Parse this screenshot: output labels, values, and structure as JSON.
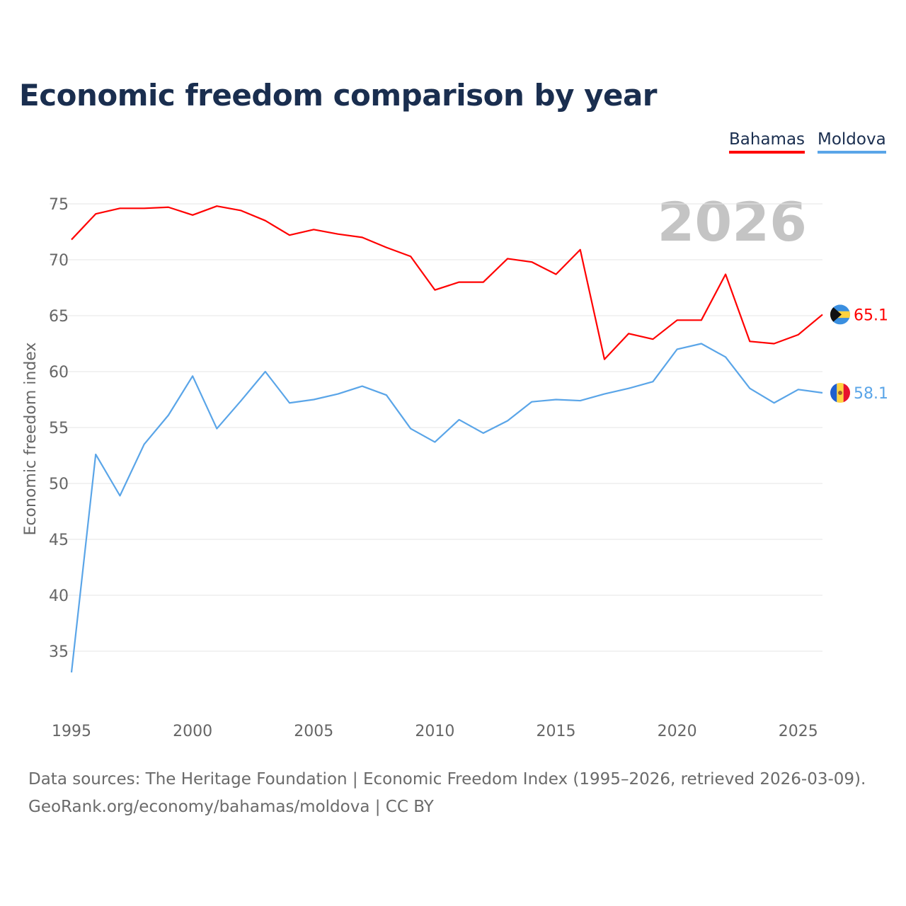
{
  "title": "Economic freedom comparison by year",
  "legend": [
    "Bahamas",
    "Moldova"
  ],
  "sources": [
    "Data sources: The Heritage Foundation | Economic Freedom Index (1995–2026, retrieved 2026-03-09).",
    "GeoRank.org/economy/bahamas/moldova | CC BY"
  ],
  "chart_data": {
    "type": "line",
    "title": "Economic freedom comparison by year",
    "ylabel": "Economic freedom index",
    "xlabel": "",
    "watermark_year": "2026",
    "xlim": [
      1995,
      2026
    ],
    "ylim": [
      30,
      77
    ],
    "yticks": [
      35,
      40,
      45,
      50,
      55,
      60,
      65,
      70,
      75
    ],
    "xticks": [
      1995,
      2000,
      2005,
      2010,
      2015,
      2020,
      2025
    ],
    "grid": true,
    "x": [
      1995,
      1996,
      1997,
      1998,
      1999,
      2000,
      2001,
      2002,
      2003,
      2004,
      2005,
      2006,
      2007,
      2008,
      2009,
      2010,
      2011,
      2012,
      2013,
      2014,
      2015,
      2016,
      2017,
      2018,
      2019,
      2020,
      2021,
      2022,
      2023,
      2024,
      2025,
      2026
    ],
    "series": [
      {
        "name": "Bahamas",
        "color": "#ff0000",
        "end_label": "65.1",
        "flag": "bahamas-flag",
        "values": [
          71.8,
          74.1,
          74.6,
          74.6,
          74.7,
          74.0,
          74.8,
          74.4,
          73.5,
          72.2,
          72.7,
          72.3,
          72.0,
          71.1,
          70.3,
          67.3,
          68.0,
          68.0,
          70.1,
          69.8,
          68.7,
          70.9,
          61.1,
          63.4,
          62.9,
          64.6,
          64.6,
          68.7,
          62.7,
          62.5,
          63.3,
          65.1
        ]
      },
      {
        "name": "Moldova",
        "color": "#5aa5e8",
        "end_label": "58.1",
        "flag": "moldova-flag",
        "values": [
          33.1,
          52.6,
          48.9,
          53.5,
          56.1,
          59.6,
          54.9,
          57.4,
          60.0,
          57.2,
          57.5,
          58.0,
          58.7,
          57.9,
          54.9,
          53.7,
          55.7,
          54.5,
          55.6,
          57.3,
          57.5,
          57.4,
          58.0,
          58.5,
          59.1,
          62.0,
          62.5,
          61.3,
          58.5,
          57.2,
          58.4,
          58.1
        ]
      }
    ]
  }
}
